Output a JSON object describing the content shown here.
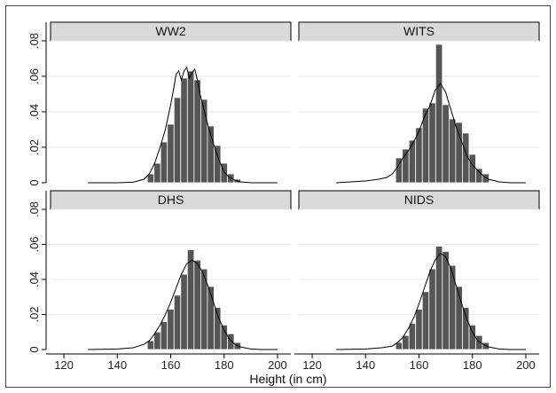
{
  "chart_data": {
    "type": "histogram",
    "xlabel": "Height (in cm)",
    "ylabel": "",
    "xlim": [
      115,
      205
    ],
    "ylim": [
      0,
      0.08
    ],
    "xticks": [
      "120",
      "140",
      "160",
      "180",
      "200"
    ],
    "yticks": [
      "0",
      ".02",
      ".04",
      ".06",
      ".08"
    ],
    "grid": true,
    "bin_width": 2.5,
    "panels": [
      {
        "name": "WW2",
        "bins_start": [
          151.25,
          153.75,
          156.25,
          158.75,
          161.25,
          163.75,
          166.25,
          168.75,
          171.25,
          173.75,
          176.25,
          178.75,
          181.25,
          183.75
        ],
        "density": [
          0.005,
          0.011,
          0.023,
          0.033,
          0.048,
          0.059,
          0.063,
          0.058,
          0.047,
          0.032,
          0.021,
          0.011,
          0.005,
          0.002
        ],
        "kde_x": [
          129,
          140,
          146,
          150,
          152,
          154,
          156,
          158,
          160,
          161,
          162,
          163,
          164,
          165,
          166,
          167,
          168,
          169,
          170,
          171,
          172,
          174,
          176,
          178,
          180,
          182,
          184,
          186,
          190,
          194,
          200
        ],
        "kde_y": [
          0,
          0,
          0.0003,
          0.002,
          0.005,
          0.011,
          0.02,
          0.03,
          0.044,
          0.052,
          0.061,
          0.063,
          0.058,
          0.063,
          0.065,
          0.059,
          0.062,
          0.064,
          0.058,
          0.05,
          0.044,
          0.032,
          0.022,
          0.013,
          0.006,
          0.003,
          0.0015,
          0.0005,
          0,
          0,
          0
        ]
      },
      {
        "name": "WITS",
        "bins_start": [
          151.25,
          153.75,
          156.25,
          158.75,
          161.25,
          163.75,
          166.25,
          168.75,
          171.25,
          173.75,
          176.25,
          178.75,
          181.25,
          183.75
        ],
        "density": [
          0.014,
          0.019,
          0.024,
          0.031,
          0.042,
          0.045,
          0.078,
          0.044,
          0.036,
          0.034,
          0.028,
          0.016,
          0.008,
          0.005
        ],
        "kde_x": [
          129,
          140,
          145,
          148,
          150,
          152,
          154,
          156,
          158,
          160,
          162,
          164,
          166,
          168,
          170,
          172,
          174,
          176,
          178,
          180,
          182,
          184,
          186,
          190,
          194,
          200
        ],
        "kde_y": [
          0,
          0.001,
          0.002,
          0.003,
          0.005,
          0.009,
          0.014,
          0.018,
          0.023,
          0.029,
          0.037,
          0.043,
          0.052,
          0.056,
          0.051,
          0.041,
          0.031,
          0.023,
          0.015,
          0.01,
          0.007,
          0.004,
          0.002,
          0.0005,
          0,
          0
        ]
      },
      {
        "name": "DHS",
        "bins_start": [
          151.25,
          153.75,
          156.25,
          158.75,
          161.25,
          163.75,
          166.25,
          168.75,
          171.25,
          173.75,
          176.25,
          178.75,
          181.25,
          183.75
        ],
        "density": [
          0.005,
          0.01,
          0.016,
          0.023,
          0.031,
          0.043,
          0.057,
          0.051,
          0.046,
          0.036,
          0.024,
          0.014,
          0.009,
          0.004
        ],
        "kde_x": [
          129,
          140,
          146,
          150,
          152,
          154,
          156,
          158,
          160,
          162,
          164,
          166,
          168,
          170,
          172,
          174,
          176,
          178,
          180,
          182,
          184,
          186,
          190,
          194,
          200
        ],
        "kde_y": [
          0,
          0.0003,
          0.001,
          0.003,
          0.005,
          0.009,
          0.014,
          0.02,
          0.027,
          0.035,
          0.043,
          0.049,
          0.051,
          0.049,
          0.044,
          0.036,
          0.027,
          0.018,
          0.011,
          0.006,
          0.003,
          0.0015,
          0.0003,
          0,
          0
        ]
      },
      {
        "name": "NIDS",
        "bins_start": [
          151.25,
          153.75,
          156.25,
          158.75,
          161.25,
          163.75,
          166.25,
          168.75,
          171.25,
          173.75,
          176.25,
          178.75,
          181.25,
          183.75
        ],
        "density": [
          0.004,
          0.008,
          0.015,
          0.023,
          0.033,
          0.046,
          0.059,
          0.056,
          0.048,
          0.036,
          0.024,
          0.014,
          0.008,
          0.004
        ],
        "kde_x": [
          129,
          140,
          146,
          150,
          152,
          154,
          156,
          158,
          160,
          162,
          164,
          166,
          168,
          170,
          172,
          174,
          176,
          178,
          180,
          182,
          184,
          186,
          190,
          194,
          200
        ],
        "kde_y": [
          0,
          0.0003,
          0.001,
          0.002,
          0.004,
          0.007,
          0.012,
          0.018,
          0.026,
          0.035,
          0.044,
          0.051,
          0.055,
          0.053,
          0.046,
          0.036,
          0.026,
          0.017,
          0.01,
          0.005,
          0.003,
          0.0015,
          0.0003,
          0,
          0
        ]
      }
    ]
  },
  "colors": {
    "bar_fill": "#555555",
    "bar_edge": "#ffffff",
    "density_line": "#000000",
    "strip_fill": "#d9d9d9",
    "grid": "#e8e8e8",
    "axis": "#000000"
  }
}
